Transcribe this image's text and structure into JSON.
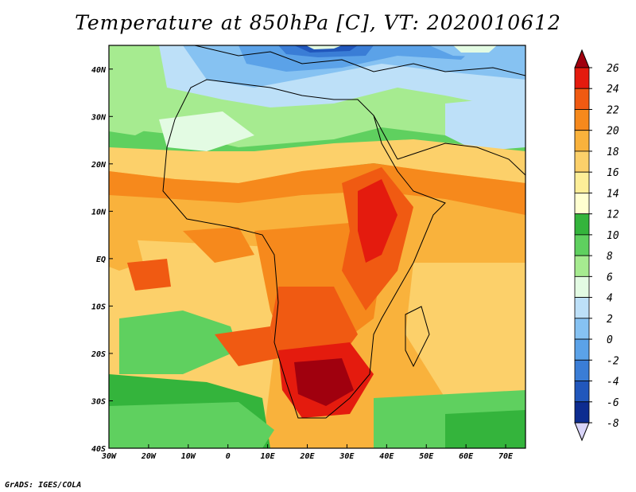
{
  "title": "Temperature at 850hPa [C], VT: 2020010612",
  "credit": "GrADS: IGES/COLA",
  "map": {
    "lon_range": [
      -30,
      75
    ],
    "lat_range": [
      -40,
      45
    ],
    "lon_ticks": [
      "30W",
      "20W",
      "10W",
      "0",
      "10E",
      "20E",
      "30E",
      "40E",
      "50E",
      "60E",
      "70E"
    ],
    "lat_ticks": [
      "40N",
      "30N",
      "20N",
      "10N",
      "EQ",
      "10S",
      "20S",
      "30S",
      "40S"
    ],
    "lat_tick_values": [
      40,
      30,
      20,
      10,
      0,
      -10,
      -20,
      -30,
      -40
    ],
    "lon_tick_values": [
      -30,
      -20,
      -10,
      0,
      10,
      20,
      30,
      40,
      50,
      60,
      70
    ]
  },
  "colorbar": {
    "labels": [
      "26",
      "24",
      "22",
      "20",
      "18",
      "16",
      "14",
      "12",
      "10",
      "8",
      "6",
      "4",
      "2",
      "0",
      "-2",
      "-4",
      "-6",
      "-8"
    ],
    "colors": [
      "#a0000e",
      "#e41b0e",
      "#f05a12",
      "#f6891c",
      "#f9b23c",
      "#fcd06a",
      "#fdee98",
      "#ffffd0",
      "#34b43c",
      "#5fd05f",
      "#a6eb90",
      "#e3fbe3",
      "#bde0f8",
      "#86c2f2",
      "#5ba2e8",
      "#3a7dd6",
      "#2157bc",
      "#0d2c90",
      "#0a1466"
    ],
    "top_triangle_color": "#a0000e",
    "bottom_triangle_color": "#d8d4f8"
  }
}
